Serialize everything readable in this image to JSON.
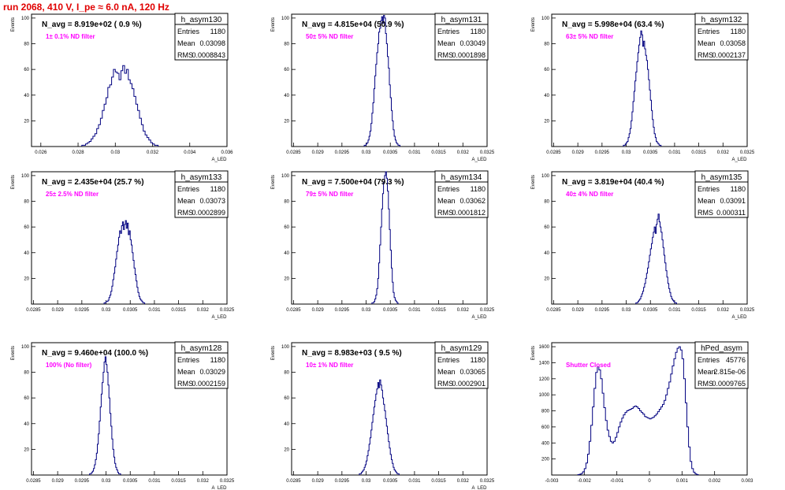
{
  "page": {
    "title": "run 2068,   410 V, I_pe ≈ 6.0 nA, 120 Hz",
    "colors": {
      "title": "#e00000",
      "histogram": "#000080",
      "filter_note": "#ff00ff",
      "axis": "#000000"
    }
  },
  "stats_labels": {
    "entries": "Entries",
    "mean": "Mean",
    "rms": "RMS"
  },
  "chart_data": [
    {
      "type": "histogram",
      "name": "h_asym130",
      "navg": "N_avg = 8.919e+02 ( 0.9 %)",
      "note": "1± 0.1% ND filter",
      "stats": {
        "entries": "1180",
        "mean": "0.03098",
        "rms": "0.0008843"
      },
      "ylabel": "Events",
      "xlabel": "A_LED",
      "xlim": [
        0.0255,
        0.036
      ],
      "ylim": [
        0,
        103
      ],
      "xticks": [
        0.026,
        0.028,
        0.03,
        0.032,
        0.034,
        0.036
      ],
      "xtick_labels": [
        "0.026",
        "0.028",
        "0.03",
        "0.032",
        "0.034",
        "0.036"
      ],
      "yticks": [
        20,
        40,
        60,
        80,
        100
      ],
      "ytick_labels": [
        "20",
        "40",
        "60",
        "80",
        "100"
      ],
      "bin_width": 0.0001,
      "x_start": 0.0282,
      "counts": [
        1,
        1,
        2,
        3,
        4,
        6,
        8,
        10,
        14,
        17,
        22,
        28,
        33,
        38,
        46,
        48,
        54,
        60,
        58,
        57,
        52,
        59,
        63,
        57,
        60,
        52,
        49,
        45,
        39,
        33,
        28,
        22,
        17,
        12,
        9,
        7,
        5,
        3,
        2,
        1,
        1
      ]
    },
    {
      "type": "histogram",
      "name": "h_asym131",
      "navg": "N_avg = 4.815e+04 (50.9 %)",
      "note": "50± 5% ND filter",
      "stats": {
        "entries": "1180",
        "mean": "0.03049",
        "rms": "0.0001898"
      },
      "ylabel": "Events",
      "xlabel": "A_LED",
      "xlim": [
        0.02846,
        0.0325
      ],
      "ylim": [
        0,
        103
      ],
      "xticks": [
        0.0285,
        0.029,
        0.0295,
        0.03,
        0.0305,
        0.031,
        0.0315,
        0.032,
        0.0325
      ],
      "xtick_labels": [
        "0.0285",
        "0.029",
        "0.0295",
        "0.03",
        "0.0305",
        "0.031",
        "0.0315",
        "0.032",
        "0.0325"
      ],
      "yticks": [
        20,
        40,
        60,
        80,
        100
      ],
      "ytick_labels": [
        "20",
        "40",
        "60",
        "80",
        "100"
      ],
      "bin_width": 2e-05,
      "x_start": 0.02996,
      "counts": [
        1,
        1,
        2,
        3,
        5,
        8,
        12,
        18,
        26,
        34,
        45,
        55,
        64,
        73,
        80,
        89,
        92,
        98,
        101,
        96,
        102,
        100,
        88,
        80,
        70,
        61,
        48,
        38,
        28,
        20,
        13,
        8,
        5,
        3,
        2,
        1,
        1
      ]
    },
    {
      "type": "histogram",
      "name": "h_asym132",
      "navg": "N_avg = 5.998e+04 (63.4 %)",
      "note": "63± 5% ND filter",
      "stats": {
        "entries": "1180",
        "mean": "0.03058",
        "rms": "0.0002137"
      },
      "ylabel": "Events",
      "xlabel": "A_LED",
      "xlim": [
        0.02846,
        0.0325
      ],
      "ylim": [
        0,
        103
      ],
      "xticks": [
        0.0285,
        0.029,
        0.0295,
        0.03,
        0.0305,
        0.031,
        0.0315,
        0.032,
        0.0325
      ],
      "xtick_labels": [
        "0.0285",
        "0.029",
        "0.0295",
        "0.03",
        "0.0305",
        "0.031",
        "0.0315",
        "0.032",
        "0.0325"
      ],
      "yticks": [
        20,
        40,
        60,
        80,
        100
      ],
      "ytick_labels": [
        "20",
        "40",
        "60",
        "80",
        "100"
      ],
      "bin_width": 2e-05,
      "x_start": 0.02994,
      "counts": [
        1,
        1,
        2,
        3,
        4,
        7,
        10,
        14,
        20,
        27,
        35,
        43,
        51,
        58,
        66,
        73,
        79,
        85,
        90,
        87,
        78,
        82,
        76,
        71,
        67,
        60,
        52,
        44,
        36,
        28,
        21,
        15,
        10,
        7,
        4,
        3,
        2,
        1,
        1
      ]
    },
    {
      "type": "histogram",
      "name": "h_asym133",
      "navg": "N_avg = 2.435e+04 (25.7 %)",
      "note": "25± 2.5% ND filter",
      "stats": {
        "entries": "1180",
        "mean": "0.03073",
        "rms": "0.0002899"
      },
      "ylabel": "Events",
      "xlabel": "A_LED",
      "xlim": [
        0.02846,
        0.0325
      ],
      "ylim": [
        0,
        103
      ],
      "xticks": [
        0.0285,
        0.029,
        0.0295,
        0.03,
        0.0305,
        0.031,
        0.0315,
        0.032,
        0.0325
      ],
      "xtick_labels": [
        "0.0285",
        "0.029",
        "0.0295",
        "0.03",
        "0.0305",
        "0.031",
        "0.0315",
        "0.032",
        "0.0325"
      ],
      "yticks": [
        20,
        40,
        60,
        80,
        100
      ],
      "ytick_labels": [
        "20",
        "40",
        "60",
        "80",
        "100"
      ],
      "bin_width": 2e-05,
      "x_start": 0.02996,
      "counts": [
        1,
        1,
        2,
        2,
        3,
        5,
        7,
        10,
        14,
        19,
        24,
        29,
        35,
        41,
        46,
        52,
        57,
        55,
        61,
        64,
        58,
        62,
        65,
        59,
        63,
        54,
        57,
        50,
        46,
        40,
        34,
        28,
        23,
        18,
        13,
        9,
        6,
        4,
        3,
        2,
        1,
        1
      ]
    },
    {
      "type": "histogram",
      "name": "h_asym134",
      "navg": "N_avg = 7.500e+04 (79.3 %)",
      "note": "79± 5% ND filter",
      "stats": {
        "entries": "1180",
        "mean": "0.03062",
        "rms": "0.0001812"
      },
      "ylabel": "Events",
      "xlabel": "A_LED",
      "xlim": [
        0.02846,
        0.0325
      ],
      "ylim": [
        0,
        103
      ],
      "xticks": [
        0.0285,
        0.029,
        0.0295,
        0.03,
        0.0305,
        0.031,
        0.0315,
        0.032,
        0.0325
      ],
      "xtick_labels": [
        "0.0285",
        "0.029",
        "0.0295",
        "0.03",
        "0.0305",
        "0.031",
        "0.0315",
        "0.032",
        "0.0325"
      ],
      "yticks": [
        20,
        40,
        60,
        80,
        100
      ],
      "ytick_labels": [
        "20",
        "40",
        "60",
        "80",
        "100"
      ],
      "bin_width": 2e-05,
      "x_start": 0.03012,
      "counts": [
        1,
        1,
        2,
        4,
        7,
        12,
        20,
        32,
        46,
        60,
        74,
        86,
        95,
        100,
        103,
        98,
        88,
        74,
        58,
        42,
        28,
        17,
        9,
        5,
        3,
        2,
        1
      ]
    },
    {
      "type": "histogram",
      "name": "h_asym135",
      "navg": "N_avg = 3.819e+04 (40.4 %)",
      "note": "40± 4% ND filter",
      "stats": {
        "entries": "1180",
        "mean": "0.03091",
        "rms": "0.000311"
      },
      "ylabel": "Events",
      "xlabel": "A_LED",
      "xlim": [
        0.02846,
        0.0325
      ],
      "ylim": [
        0,
        103
      ],
      "xticks": [
        0.0285,
        0.029,
        0.0295,
        0.03,
        0.0305,
        0.031,
        0.0315,
        0.032,
        0.0325
      ],
      "xtick_labels": [
        "0.0285",
        "0.029",
        "0.0295",
        "0.03",
        "0.0305",
        "0.031",
        "0.0315",
        "0.032",
        "0.0325"
      ],
      "yticks": [
        20,
        40,
        60,
        80,
        100
      ],
      "ytick_labels": [
        "20",
        "40",
        "60",
        "80",
        "100"
      ],
      "bin_width": 2e-05,
      "x_start": 0.0302,
      "counts": [
        1,
        1,
        2,
        3,
        4,
        6,
        8,
        10,
        13,
        16,
        20,
        24,
        28,
        33,
        38,
        43,
        47,
        52,
        56,
        60,
        55,
        62,
        66,
        70,
        64,
        60,
        56,
        50,
        44,
        38,
        32,
        26,
        21,
        16,
        12,
        9,
        6,
        4,
        3,
        2,
        1,
        1
      ]
    },
    {
      "type": "histogram",
      "name": "h_asym128",
      "navg": "N_avg = 9.460e+04 (100.0 %)",
      "note": "100% (No filter)",
      "stats": {
        "entries": "1180",
        "mean": "0.03029",
        "rms": "0.0002159"
      },
      "ylabel": "Events",
      "xlabel": "A_LED",
      "xlim": [
        0.02846,
        0.0325
      ],
      "ylim": [
        0,
        103
      ],
      "xticks": [
        0.0285,
        0.029,
        0.0295,
        0.03,
        0.0305,
        0.031,
        0.0315,
        0.032,
        0.0325
      ],
      "xtick_labels": [
        "0.0285",
        "0.029",
        "0.0295",
        "0.03",
        "0.0305",
        "0.031",
        "0.0315",
        "0.032",
        "0.0325"
      ],
      "yticks": [
        20,
        40,
        60,
        80,
        100
      ],
      "ytick_labels": [
        "20",
        "40",
        "60",
        "80",
        "100"
      ],
      "bin_width": 2e-05,
      "x_start": 0.02966,
      "counts": [
        1,
        1,
        2,
        3,
        5,
        8,
        12,
        17,
        24,
        32,
        42,
        53,
        63,
        72,
        80,
        88,
        92,
        86,
        80,
        70,
        60,
        48,
        38,
        28,
        20,
        14,
        9,
        6,
        4,
        2,
        1,
        1
      ]
    },
    {
      "type": "histogram",
      "name": "h_asym129",
      "navg": "N_avg = 8.983e+03 ( 9.5 %)",
      "note": "10± 1% ND filter",
      "stats": {
        "entries": "1180",
        "mean": "0.03065",
        "rms": "0.0002901"
      },
      "ylabel": "Events",
      "xlabel": "A_LED",
      "xlim": [
        0.02846,
        0.0325
      ],
      "ylim": [
        0,
        103
      ],
      "xticks": [
        0.0285,
        0.029,
        0.0295,
        0.03,
        0.0305,
        0.031,
        0.0315,
        0.032,
        0.0325
      ],
      "xtick_labels": [
        "0.0285",
        "0.029",
        "0.0295",
        "0.03",
        "0.0305",
        "0.031",
        "0.0315",
        "0.032",
        "0.0325"
      ],
      "yticks": [
        20,
        40,
        60,
        80,
        100
      ],
      "ytick_labels": [
        "20",
        "40",
        "60",
        "80",
        "100"
      ],
      "bin_width": 2e-05,
      "x_start": 0.02986,
      "counts": [
        1,
        1,
        2,
        3,
        4,
        6,
        8,
        11,
        15,
        19,
        24,
        29,
        35,
        41,
        47,
        53,
        58,
        63,
        67,
        72,
        68,
        74,
        70,
        66,
        60,
        55,
        50,
        44,
        38,
        32,
        26,
        21,
        16,
        12,
        9,
        6,
        4,
        3,
        2,
        1,
        1
      ]
    },
    {
      "type": "histogram",
      "name": "hPed_asym",
      "navg": "",
      "note": "Shutter Closed",
      "stats": {
        "entries": "45776",
        "mean": "2.815e-06",
        "rms": "0.0009765"
      },
      "ylabel": "Events",
      "xlabel": "",
      "xlim": [
        -0.003,
        0.003
      ],
      "ylim": [
        0,
        1650
      ],
      "xticks": [
        -0.003,
        -0.002,
        -0.001,
        0,
        0.001,
        0.002,
        0.003
      ],
      "xtick_labels": [
        "-0.003",
        "-0.002",
        "-0.001",
        "0",
        "0.001",
        "0.002",
        "0.003"
      ],
      "yticks": [
        200,
        400,
        600,
        800,
        1000,
        1200,
        1400,
        1600
      ],
      "ytick_labels": [
        "200",
        "400",
        "600",
        "800",
        "1000",
        "1200",
        "1400",
        "1600"
      ],
      "bin_width": 5e-05,
      "x_start": -0.0022,
      "counts": [
        5,
        10,
        20,
        40,
        80,
        150,
        260,
        420,
        620,
        850,
        1080,
        1280,
        1350,
        1310,
        1200,
        1020,
        840,
        680,
        560,
        480,
        420,
        400,
        420,
        470,
        530,
        600,
        660,
        710,
        750,
        780,
        800,
        810,
        820,
        830,
        850,
        860,
        850,
        830,
        800,
        780,
        760,
        730,
        720,
        710,
        700,
        710,
        720,
        740,
        760,
        790,
        820,
        850,
        880,
        930,
        1000,
        1080,
        1160,
        1260,
        1360,
        1450,
        1530,
        1580,
        1600,
        1560,
        1450,
        1200,
        900,
        600,
        350,
        170,
        80,
        35,
        15,
        6
      ]
    }
  ]
}
